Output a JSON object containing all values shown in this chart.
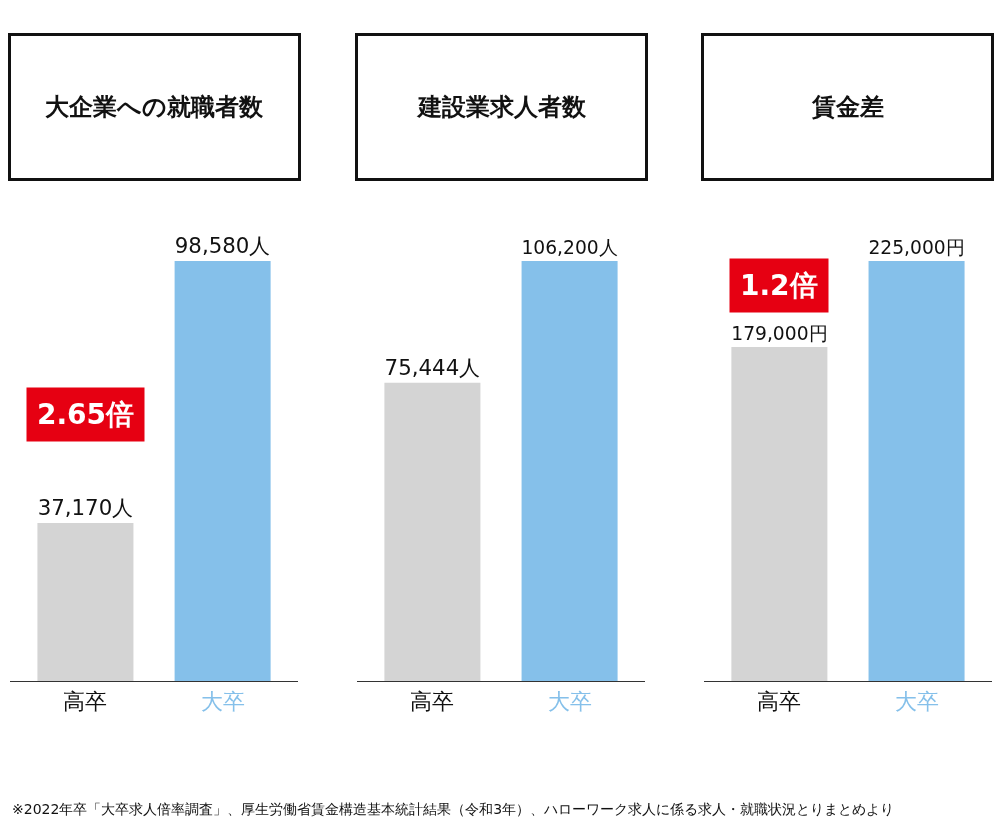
{
  "chart_data": [
    {
      "type": "bar",
      "title": "大企業への就職者数",
      "categories": [
        "高卒",
        "大卒"
      ],
      "values": [
        37170,
        98580
      ],
      "colors": [
        "#d4d4d4",
        "#85c0ea"
      ],
      "value_labels": [
        "37,170人",
        "98,580人"
      ],
      "annotations": [
        "2.65倍"
      ],
      "tick_labels": "x"
    },
    {
      "type": "bar",
      "title": "建設業求人者数",
      "categories": [
        "高卒",
        "大卒"
      ],
      "values": [
        75444,
        106200
      ],
      "colors": [
        "#d4d4d4",
        "#85c0ea"
      ],
      "value_labels": [
        "75,444人",
        "106,200人"
      ],
      "tick_labels": "x"
    },
    {
      "type": "bar",
      "title": "賃金差",
      "categories": [
        "高卒",
        "大卒"
      ],
      "values": [
        179000,
        225000
      ],
      "colors": [
        "#d4d4d4",
        "#85c0ea"
      ],
      "value_labels": [
        "179,000円",
        "225,000円"
      ],
      "annotations": [
        "1.2倍",
        "※2022年卒「大卒求人倍率調査」、厚生労働省賃金構造基本統計結果（令和3年）、ハローワーク求人に係る求人・就職状況とりまとめより"
      ],
      "tick_labels": "x"
    }
  ]
}
